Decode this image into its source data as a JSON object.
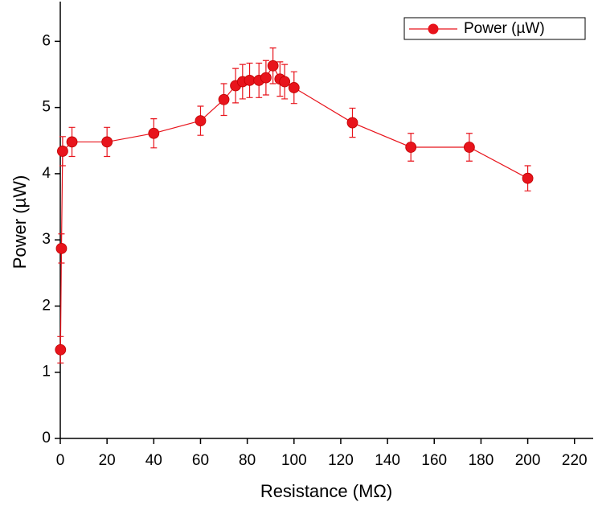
{
  "chart_data": {
    "type": "scatter",
    "x_label": "Resistance (MΩ)",
    "y_label": "Power (µW)",
    "x": [
      0.1,
      0.5,
      1,
      5,
      20,
      40,
      60,
      70,
      75,
      78,
      81,
      85,
      88,
      91,
      94,
      96,
      100,
      125,
      150,
      175,
      200
    ],
    "series": [
      {
        "name": "Power (µW)",
        "color": "#e8141c",
        "values": [
          1.34,
          2.87,
          4.34,
          4.48,
          4.48,
          4.61,
          4.8,
          5.12,
          5.33,
          5.39,
          5.41,
          5.41,
          5.45,
          5.63,
          5.43,
          5.39,
          5.3,
          4.77,
          4.4,
          4.4,
          3.93
        ],
        "errors": [
          0.2,
          0.22,
          0.22,
          0.22,
          0.22,
          0.22,
          0.22,
          0.24,
          0.26,
          0.26,
          0.26,
          0.26,
          0.26,
          0.27,
          0.26,
          0.26,
          0.24,
          0.22,
          0.21,
          0.21,
          0.19
        ]
      }
    ],
    "xlim": [
      0,
      228
    ],
    "ylim": [
      0,
      6.6
    ],
    "xticks": [
      0,
      20,
      40,
      60,
      80,
      100,
      120,
      140,
      160,
      180,
      200,
      220
    ],
    "yticks": [
      0,
      1,
      2,
      3,
      4,
      5,
      6
    ],
    "legend": "upper right"
  }
}
